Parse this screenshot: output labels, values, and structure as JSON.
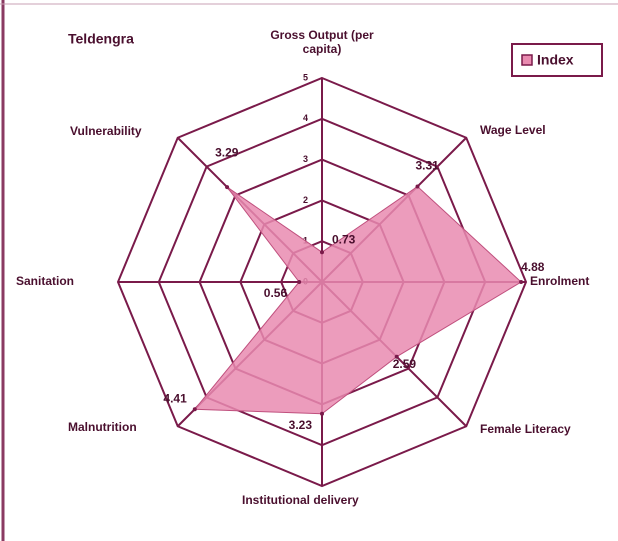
{
  "chart_data": {
    "type": "radar",
    "title": "Teldengra",
    "categories": [
      "Gross Output (per capita)",
      "Wage Level",
      "Enrolment",
      "Female Literacy",
      "Institutional delivery",
      "Malnutrition",
      "Sanitation",
      "Vulnerability"
    ],
    "series": [
      {
        "name": "Index",
        "color": "#e98bb0",
        "values": [
          0.73,
          3.31,
          4.88,
          2.59,
          3.23,
          4.41,
          0.56,
          3.29
        ]
      }
    ],
    "ylim": [
      0,
      5
    ],
    "yticks": [
      0,
      1,
      2,
      3,
      4,
      5
    ],
    "legend": "top-right"
  }
}
